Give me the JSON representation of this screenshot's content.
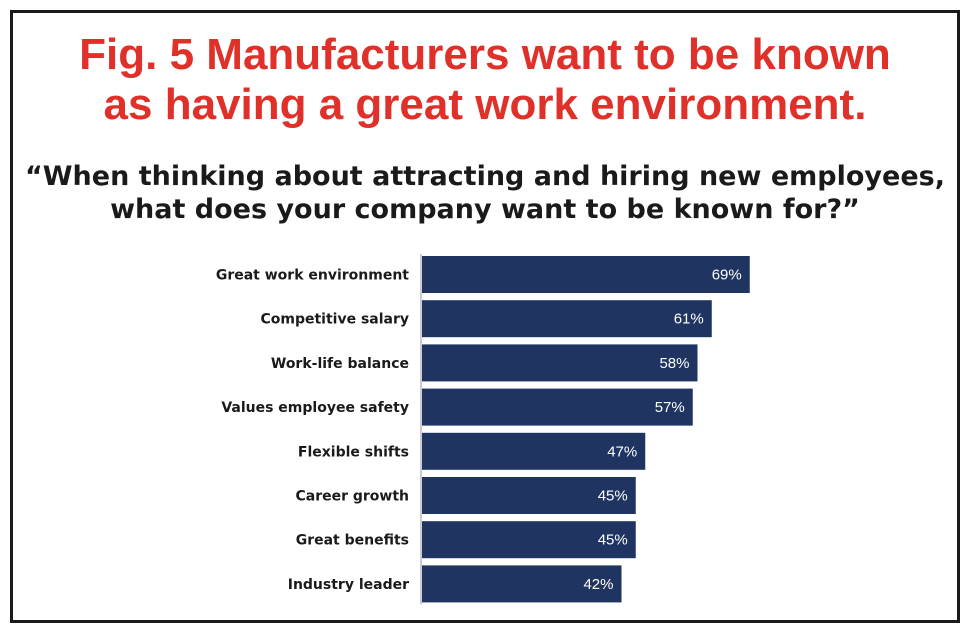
{
  "title_line1": "Fig. 5 Manufacturers want to be known",
  "title_line2": "as having a great work environment.",
  "subtitle_line1": "“When thinking about attracting and hiring new employees,",
  "subtitle_line2": "what does your company want to be known for?”",
  "colors": {
    "title": "#e0302a",
    "bar": "#1f3461",
    "text": "#1a1a1a"
  },
  "chart_data": {
    "type": "bar",
    "orientation": "horizontal",
    "categories": [
      "Great work environment",
      "Competitive salary",
      "Work-life balance",
      "Values employee safety",
      "Flexible shifts",
      "Career growth",
      "Great benefits",
      "Industry leader"
    ],
    "values": [
      69,
      61,
      58,
      57,
      47,
      45,
      45,
      42
    ],
    "value_labels": [
      "69%",
      "61%",
      "58%",
      "57%",
      "47%",
      "45%",
      "45%",
      "42%"
    ],
    "xlim": [
      0,
      100
    ],
    "grid": false,
    "legend": "none"
  }
}
